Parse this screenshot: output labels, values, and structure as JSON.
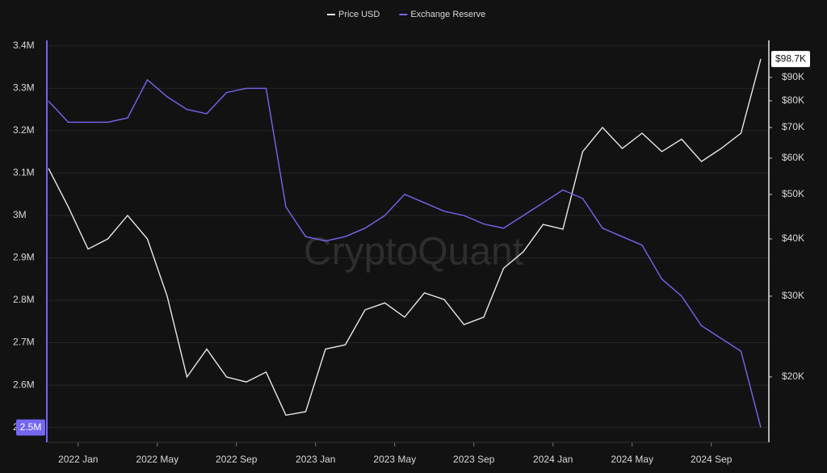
{
  "chart_data": {
    "type": "line",
    "watermark": "CryptoQuant",
    "x": [
      "2021-11",
      "2021-12",
      "2022-01",
      "2022-02",
      "2022-03",
      "2022-04",
      "2022-05",
      "2022-06",
      "2022-07",
      "2022-08",
      "2022-09",
      "2022-10",
      "2022-11",
      "2022-12",
      "2023-01",
      "2023-02",
      "2023-03",
      "2023-04",
      "2023-05",
      "2023-06",
      "2023-07",
      "2023-08",
      "2023-09",
      "2023-10",
      "2023-11",
      "2023-12",
      "2024-01",
      "2024-02",
      "2024-03",
      "2024-04",
      "2024-05",
      "2024-06",
      "2024-07",
      "2024-08",
      "2024-09",
      "2024-10",
      "2024-11"
    ],
    "xlim": [
      "2021-11",
      "2024-11"
    ],
    "xticks": [
      {
        "value": "2022-01",
        "label": "2022 Jan"
      },
      {
        "value": "2022-05",
        "label": "2022 May"
      },
      {
        "value": "2022-09",
        "label": "2022 Sep"
      },
      {
        "value": "2023-01",
        "label": "2023 Jan"
      },
      {
        "value": "2023-05",
        "label": "2023 May"
      },
      {
        "value": "2023-09",
        "label": "2023 Sep"
      },
      {
        "value": "2024-01",
        "label": "2024 Jan"
      },
      {
        "value": "2024-05",
        "label": "2024 May"
      },
      {
        "value": "2024-09",
        "label": "2024 Sep"
      }
    ],
    "ylim": [
      2465000,
      3413000
    ],
    "yticks": [
      {
        "value": 2500000,
        "label": "2.5M"
      },
      {
        "value": 2600000,
        "label": "2.6M"
      },
      {
        "value": 2700000,
        "label": "2.7M"
      },
      {
        "value": 2800000,
        "label": "2.8M"
      },
      {
        "value": 2900000,
        "label": "2.9M"
      },
      {
        "value": 3000000,
        "label": "3M"
      },
      {
        "value": 3100000,
        "label": "3.1M"
      },
      {
        "value": 3200000,
        "label": "3.2M"
      },
      {
        "value": 3300000,
        "label": "3.3M"
      },
      {
        "value": 3400000,
        "label": "3.4M"
      }
    ],
    "y2lim": [
      14400,
      108400
    ],
    "y2log": true,
    "y2ticks": [
      {
        "value": 20000,
        "label": "$20K"
      },
      {
        "value": 30000,
        "label": "$30K"
      },
      {
        "value": 40000,
        "label": "$40K"
      },
      {
        "value": 50000,
        "label": "$50K"
      },
      {
        "value": 60000,
        "label": "$60K"
      },
      {
        "value": 70000,
        "label": "$70K"
      },
      {
        "value": 80000,
        "label": "$80K"
      },
      {
        "value": 90000,
        "label": "$90K"
      }
    ],
    "grid": true,
    "series": [
      {
        "name": "Price USD",
        "color": "#e8e8e8",
        "axis": "y2",
        "values": [
          57000,
          47000,
          38000,
          40000,
          45000,
          40000,
          30000,
          20000,
          23000,
          20000,
          19500,
          20500,
          16500,
          16800,
          23000,
          23500,
          28000,
          29000,
          27000,
          30500,
          29500,
          26000,
          27000,
          34500,
          37500,
          43000,
          42000,
          62000,
          70000,
          63000,
          68000,
          62000,
          66000,
          59000,
          63000,
          68000,
          98700
        ],
        "value_labels": [
          null,
          null,
          null,
          null,
          null,
          null,
          null,
          null,
          null,
          null,
          null,
          null,
          null,
          null,
          null,
          null,
          null,
          null,
          null,
          null,
          null,
          null,
          null,
          null,
          null,
          null,
          null,
          null,
          null,
          null,
          null,
          null,
          null,
          null,
          null,
          null,
          "$98.7K"
        ]
      },
      {
        "name": "Exchange Reserve",
        "color": "#7367f0",
        "values": [
          3270000,
          3220000,
          3220000,
          3220000,
          3230000,
          3320000,
          3280000,
          3250000,
          3240000,
          3290000,
          3300000,
          3300000,
          3020000,
          2950000,
          2940000,
          2950000,
          2970000,
          3000000,
          3050000,
          3030000,
          3010000,
          3000000,
          2980000,
          2970000,
          3000000,
          3030000,
          3060000,
          3040000,
          2970000,
          2950000,
          2930000,
          2850000,
          2810000,
          2740000,
          2710000,
          2680000,
          2500000
        ],
        "value_labels": [
          null,
          null,
          null,
          null,
          null,
          null,
          null,
          null,
          null,
          null,
          null,
          null,
          null,
          null,
          null,
          null,
          null,
          null,
          null,
          null,
          null,
          null,
          null,
          null,
          null,
          null,
          null,
          null,
          null,
          null,
          null,
          null,
          null,
          null,
          null,
          null,
          "2.5M"
        ]
      }
    ]
  }
}
